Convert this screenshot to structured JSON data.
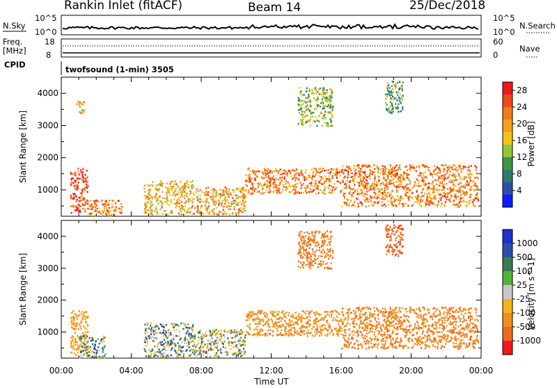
{
  "header": {
    "station": "Rankin Inlet (fitACF)",
    "beam": "Beam 14",
    "date": "25/Dec/2018"
  },
  "top_labels": {
    "nsky": "N.Sky",
    "nsky_ticks": [
      "10^5",
      "10^0"
    ],
    "nsearch": "N.Search",
    "nsearch_ticks": [
      "10^5",
      "10^0"
    ],
    "freq": "Freq.",
    "freq_unit": "[MHz]",
    "freq_ticks": [
      "18",
      "8"
    ],
    "nave": "Nave",
    "nave_ticks": [
      "60",
      "0"
    ],
    "cpid": "CPID",
    "cpid_value": "twofsound (1-min) 3505"
  },
  "colors": {
    "power": [
      "#0a1eff",
      "#2c4fa8",
      "#2f7a70",
      "#3f9448",
      "#8fc93a",
      "#f0c419",
      "#f5a21b",
      "#f07b17",
      "#ee4a17",
      "#ef1a1a"
    ],
    "velocity": [
      "#1f2fd0",
      "#2c4fa8",
      "#3a7a55",
      "#57b23c",
      "#c7c7c7",
      "#f3b41a",
      "#f08f1c",
      "#ee6a1c",
      "#ef1a1a"
    ]
  },
  "chart_data": [
    {
      "type": "heatmap",
      "title": "Power",
      "xlabel": "Time UT",
      "ylabel": "Slant Range [km]",
      "x_ticks": [
        "00:00",
        "04:00",
        "08:00",
        "12:00",
        "16:00",
        "20:00",
        "00:00"
      ],
      "y_ticks": [
        "1000",
        "2000",
        "3000",
        "4000"
      ],
      "xlim": [
        0,
        24
      ],
      "ylim": [
        180,
        4500
      ],
      "colorbar": {
        "label": "Power [dB]",
        "ticks": [
          "4",
          "8",
          "12",
          "16",
          "20",
          "24",
          "28"
        ],
        "range": [
          0,
          30
        ]
      },
      "regions": [
        {
          "t": [
            0.5,
            1.5
          ],
          "r": [
            300,
            1700
          ],
          "level": 26
        },
        {
          "t": [
            0.8,
            1.3
          ],
          "r": [
            3400,
            3800
          ],
          "level": 18
        },
        {
          "t": [
            1.5,
            3.5
          ],
          "r": [
            200,
            700
          ],
          "level": 22
        },
        {
          "t": [
            4.7,
            7.5
          ],
          "r": [
            250,
            1300
          ],
          "level": 18
        },
        {
          "t": [
            7.5,
            10.5
          ],
          "r": [
            250,
            1100
          ],
          "level": 20
        },
        {
          "t": [
            10.5,
            16.0
          ],
          "r": [
            900,
            1700
          ],
          "level": 22
        },
        {
          "t": [
            13.5,
            15.5
          ],
          "r": [
            3000,
            4200
          ],
          "level": 14
        },
        {
          "t": [
            16.0,
            23.8
          ],
          "r": [
            500,
            1800
          ],
          "level": 22
        },
        {
          "t": [
            18.5,
            19.5
          ],
          "r": [
            3400,
            4400
          ],
          "level": 10
        }
      ]
    },
    {
      "type": "heatmap",
      "title": "Velocity",
      "xlabel": "Time UT",
      "ylabel": "Slant Range [km]",
      "x_ticks": [
        "00:00",
        "04:00",
        "08:00",
        "12:00",
        "16:00",
        "20:00",
        "00:00"
      ],
      "y_ticks": [
        "1000",
        "2000",
        "3000",
        "4000"
      ],
      "xlim": [
        0,
        24
      ],
      "ylim": [
        180,
        4500
      ],
      "colorbar": {
        "label": "Velocity [m s^-1]",
        "ticks": [
          "1000",
          "500",
          "100",
          "25",
          "-25",
          "-100",
          "-500",
          "-1000"
        ]
      },
      "regions": [
        {
          "t": [
            0.5,
            1.5
          ],
          "r": [
            300,
            1700
          ],
          "level": -150
        },
        {
          "t": [
            1.0,
            2.5
          ],
          "r": [
            200,
            900
          ],
          "level": 60
        },
        {
          "t": [
            4.7,
            7.5
          ],
          "r": [
            250,
            1300
          ],
          "level": 40
        },
        {
          "t": [
            7.5,
            10.5
          ],
          "r": [
            250,
            1100
          ],
          "level": 0
        },
        {
          "t": [
            10.5,
            16.0
          ],
          "r": [
            900,
            1700
          ],
          "level": -200
        },
        {
          "t": [
            13.5,
            15.5
          ],
          "r": [
            3000,
            4200
          ],
          "level": -300
        },
        {
          "t": [
            16.0,
            23.8
          ],
          "r": [
            500,
            1800
          ],
          "level": -250
        },
        {
          "t": [
            18.5,
            19.5
          ],
          "r": [
            3400,
            4400
          ],
          "level": -400
        }
      ]
    }
  ]
}
